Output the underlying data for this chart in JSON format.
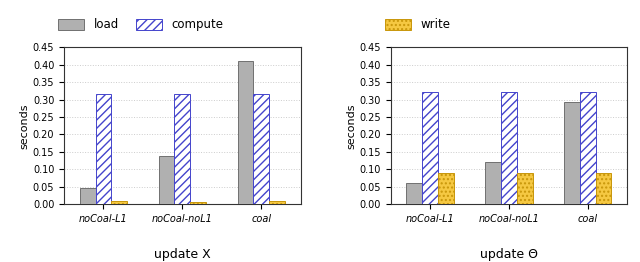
{
  "left_title": "update X",
  "right_title": "update Θ",
  "categories": [
    "noCoal-L1",
    "noCoal-noL1",
    "coal"
  ],
  "left_data": {
    "load": [
      0.048,
      0.138,
      0.41
    ],
    "compute": [
      0.315,
      0.315,
      0.315
    ],
    "write": [
      0.01,
      0.008,
      0.01
    ]
  },
  "right_data": {
    "load": [
      0.06,
      0.122,
      0.292
    ],
    "compute": [
      0.323,
      0.323,
      0.323
    ],
    "write": [
      0.09,
      0.09,
      0.09
    ]
  },
  "bar_colors": {
    "load": "#b0b0b0",
    "compute": "#ffffff",
    "write": "#f5c842"
  },
  "hatch_patterns": {
    "load": "",
    "compute": "////",
    "write": "...."
  },
  "edge_colors": {
    "load": "#707070",
    "compute": "#4444cc",
    "write": "#c8960a"
  },
  "ylim": [
    0,
    0.45
  ],
  "yticks": [
    0,
    0.05,
    0.1,
    0.15,
    0.2,
    0.25,
    0.3,
    0.35,
    0.4,
    0.45
  ],
  "ylabel": "seconds",
  "bar_width": 0.2,
  "legend_labels": [
    "load",
    "compute",
    "write"
  ],
  "background_color": "#ffffff",
  "grid_color": "#cccccc"
}
